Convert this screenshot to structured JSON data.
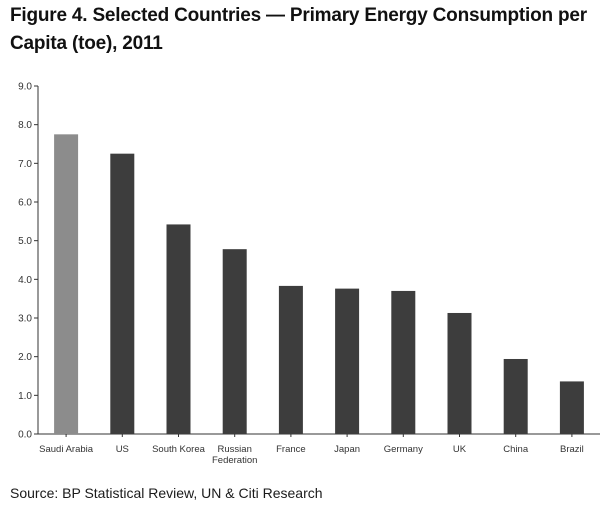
{
  "figure": {
    "title": "Figure 4. Selected Countries — Primary Energy Consumption per Capita (toe), 2011",
    "source": "Source: BP Statistical Review, UN & Citi Research"
  },
  "chart_data": {
    "type": "bar",
    "title": "Figure 4. Selected Countries — Primary Energy Consumption per Capita (toe), 2011",
    "xlabel": "",
    "ylabel": "",
    "ylim": [
      0,
      9
    ],
    "yticks": [
      "0.0",
      "1.0",
      "2.0",
      "3.0",
      "4.0",
      "5.0",
      "6.0",
      "7.0",
      "8.0",
      "9.0"
    ],
    "categories": [
      "Saudi Arabia",
      "US",
      "South Korea",
      "Russian Federation",
      "France",
      "Japan",
      "Germany",
      "UK",
      "China",
      "Brazil"
    ],
    "category_lines": [
      [
        "Saudi Arabia"
      ],
      [
        "US"
      ],
      [
        "South Korea"
      ],
      [
        "Russian",
        "Federation"
      ],
      [
        "France"
      ],
      [
        "Japan"
      ],
      [
        "Germany"
      ],
      [
        "UK"
      ],
      [
        "China"
      ],
      [
        "Brazil"
      ]
    ],
    "values": [
      7.75,
      7.25,
      5.42,
      4.78,
      3.83,
      3.76,
      3.7,
      3.13,
      1.94,
      1.36
    ],
    "highlight_index": 0,
    "colors": {
      "highlight": "#8c8c8c",
      "bar": "#3d3d3d",
      "axis": "#333333",
      "text": "#333333"
    },
    "grid": false,
    "legend": "none"
  }
}
